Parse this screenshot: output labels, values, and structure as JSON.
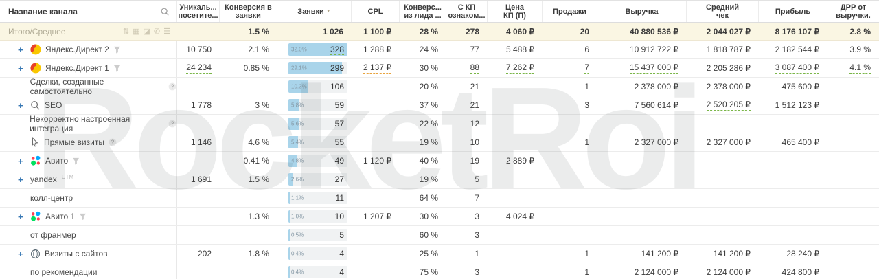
{
  "watermark": "RocketRoi",
  "colors": {
    "accent_blue": "#3878b4",
    "bar_fill": "#a9d4ea",
    "underline_green": "#7ab648",
    "underline_orange": "#e8a33d",
    "totals_bg": "#faf6e3"
  },
  "table": {
    "columns": [
      {
        "id": "channel",
        "lines": [
          "Название канала"
        ],
        "search_icon": true
      },
      {
        "id": "unique_visitors",
        "lines": [
          "Уникаль...",
          "посетите..."
        ]
      },
      {
        "id": "conversion_to_leads",
        "lines": [
          "Конверсия в",
          "заявки"
        ]
      },
      {
        "id": "leads",
        "lines": [
          "Заявки"
        ],
        "sorted": "desc"
      },
      {
        "id": "cpl",
        "lines": [
          "CPL"
        ]
      },
      {
        "id": "conversion_from_lead",
        "lines": [
          "Конверс...",
          "из лида ..."
        ]
      },
      {
        "id": "kp_viewed",
        "lines": [
          "С КП",
          "ознаком..."
        ]
      },
      {
        "id": "kp_price",
        "lines": [
          "Цена",
          "КП (П)"
        ]
      },
      {
        "id": "sales",
        "lines": [
          "Продажи"
        ]
      },
      {
        "id": "revenue",
        "lines": [
          "Выручка"
        ]
      },
      {
        "id": "avg_check",
        "lines": [
          "Средний",
          "чек"
        ]
      },
      {
        "id": "profit",
        "lines": [
          "Прибыль"
        ]
      },
      {
        "id": "drr",
        "lines": [
          "ДРР от",
          "выручки."
        ]
      }
    ],
    "totals": {
      "label": "Итого/Среднее",
      "icons": [
        {
          "name": "sort-icon",
          "glyph": "⇅"
        },
        {
          "name": "grid-icon",
          "glyph": "▦"
        },
        {
          "name": "chart-icon",
          "glyph": "◪"
        },
        {
          "name": "phone-icon",
          "glyph": "✆"
        },
        {
          "name": "list-icon",
          "glyph": "☰"
        }
      ],
      "values": [
        "",
        "1.5 %",
        "1 026",
        "1 100 ₽",
        "28 %",
        "278",
        "4 060 ₽",
        "20",
        "40 880 536 ₽",
        "2 044 027 ₽",
        "8 176 107 ₽",
        "2.8 %"
      ]
    },
    "rows": [
      {
        "name": {
          "label": "Яндекс.Директ 2",
          "expand": true,
          "icon": "yandex-direct",
          "trailing": "funnel"
        },
        "cells": [
          "10 750",
          "2.1 %",
          {
            "pct": "32.0%",
            "fill": 100,
            "v": "328",
            "u": "green"
          },
          "1 288 ₽",
          "24 %",
          "77",
          "5 488 ₽",
          "6",
          "10 912 722 ₽",
          "1 818 787 ₽",
          "2 182 544 ₽",
          "3.9 %"
        ]
      },
      {
        "name": {
          "label": "Яндекс.Директ 1",
          "expand": true,
          "icon": "yandex-direct",
          "trailing": "funnel"
        },
        "cells": [
          {
            "v": "24 234",
            "u": "green"
          },
          "0.85 %",
          {
            "pct": "29.1%",
            "fill": 91,
            "v": "299"
          },
          {
            "v": "2 137 ₽",
            "u": "orange"
          },
          "30 %",
          {
            "v": "88",
            "u": "green"
          },
          {
            "v": "7 262 ₽",
            "u": "green"
          },
          {
            "v": "7",
            "u": "green"
          },
          {
            "v": "15 437 000 ₽",
            "u": "green"
          },
          "2 205 286 ₽",
          {
            "v": "3 087 400 ₽",
            "u": "green"
          },
          {
            "v": "4.1 %",
            "u": "green"
          }
        ]
      },
      {
        "name": {
          "label": "Сделки, созданные самостоятельно",
          "trailing": "question"
        },
        "cells": [
          "",
          "",
          {
            "pct": "10.3%",
            "fill": 32,
            "v": "106"
          },
          "",
          "20 %",
          "21",
          "",
          "1",
          "2 378 000 ₽",
          "2 378 000 ₽",
          "475 600 ₽",
          ""
        ]
      },
      {
        "name": {
          "label": "SEO",
          "expand": true,
          "icon": "seo"
        },
        "cells": [
          "1 778",
          "3 %",
          {
            "pct": "5.8%",
            "fill": 18,
            "v": "59"
          },
          "",
          "37 %",
          "21",
          "",
          "3",
          "7 560 614 ₽",
          {
            "v": "2 520 205 ₽",
            "u": "green"
          },
          "1 512 123 ₽",
          ""
        ]
      },
      {
        "name": {
          "label": "Некорректно настроенная интеграция",
          "trailing": "question"
        },
        "cells": [
          "",
          "",
          {
            "pct": "5.6%",
            "fill": 17.4,
            "v": "57"
          },
          "",
          "22 %",
          "12",
          "",
          "",
          "",
          "",
          "",
          ""
        ]
      },
      {
        "name": {
          "label": "Прямые визиты",
          "icon": "cursor",
          "trailing": "question"
        },
        "cells": [
          "1 146",
          "4.6 %",
          {
            "pct": "5.4%",
            "fill": 16.8,
            "v": "55"
          },
          "",
          "19 %",
          "10",
          "",
          "1",
          "2 327 000 ₽",
          "2 327 000 ₽",
          "465 400 ₽",
          ""
        ]
      },
      {
        "name": {
          "label": "Авито",
          "expand": true,
          "icon": "avito",
          "trailing": "funnel"
        },
        "cells": [
          "",
          "0.41 %",
          {
            "pct": "4.8%",
            "fill": 14.9,
            "v": "49"
          },
          "1 120 ₽",
          "40 %",
          "19",
          "2 889 ₽",
          "",
          "",
          "",
          "",
          ""
        ]
      },
      {
        "name": {
          "label": "yandex",
          "expand": true,
          "sup": "UTM"
        },
        "cells": [
          "1 691",
          "1.5 %",
          {
            "pct": "2.6%",
            "fill": 8.2,
            "v": "27"
          },
          "",
          "19 %",
          "5",
          "",
          "",
          "",
          "",
          "",
          ""
        ]
      },
      {
        "name": {
          "label": "колл-центр"
        },
        "cells": [
          "",
          "",
          {
            "pct": "1.1%",
            "fill": 3.4,
            "v": "11"
          },
          "",
          "64 %",
          "7",
          "",
          "",
          "",
          "",
          "",
          ""
        ]
      },
      {
        "name": {
          "label": "Авито 1",
          "expand": true,
          "icon": "avito",
          "trailing": "funnel"
        },
        "cells": [
          "",
          "1.3 %",
          {
            "pct": "1.0%",
            "fill": 3,
            "v": "10"
          },
          "1 207 ₽",
          "30 %",
          "3",
          "4 024 ₽",
          "",
          "",
          "",
          "",
          ""
        ]
      },
      {
        "name": {
          "label": "от франмер"
        },
        "cells": [
          "",
          "",
          {
            "pct": "0.5%",
            "fill": 1.5,
            "v": "5"
          },
          "",
          "60 %",
          "3",
          "",
          "",
          "",
          "",
          "",
          ""
        ]
      },
      {
        "name": {
          "label": "Визиты с сайтов",
          "expand": true,
          "icon": "globe"
        },
        "cells": [
          "202",
          "1.8 %",
          {
            "pct": "0.4%",
            "fill": 1.2,
            "v": "4"
          },
          "",
          "25 %",
          "1",
          "",
          "1",
          "141 200 ₽",
          "141 200 ₽",
          "28 240 ₽",
          ""
        ]
      },
      {
        "name": {
          "label": "по рекомендации"
        },
        "cells": [
          "",
          "",
          {
            "pct": "0.4%",
            "fill": 1.2,
            "v": "4"
          },
          "",
          "75 %",
          "3",
          "",
          "1",
          "2 124 000 ₽",
          "2 124 000 ₽",
          "424 800 ₽",
          ""
        ]
      }
    ]
  }
}
